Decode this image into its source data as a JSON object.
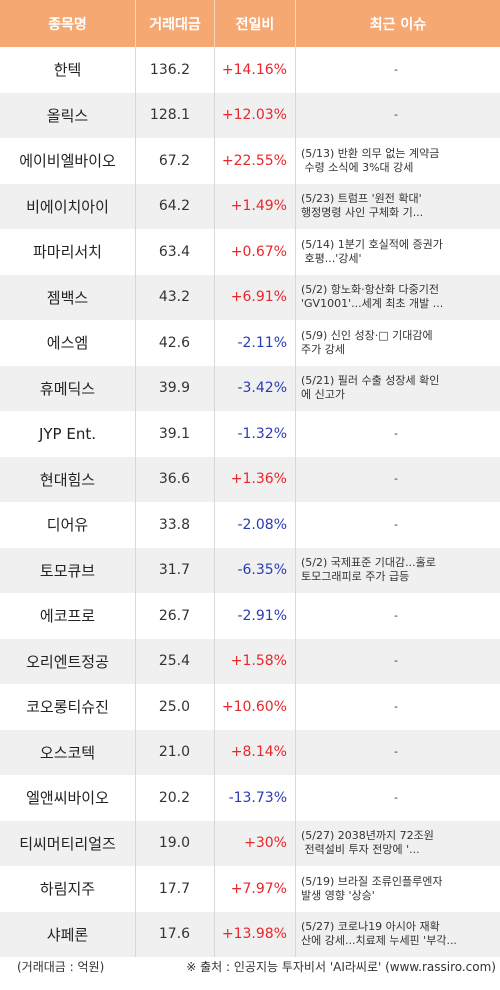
{
  "header": {
    "name": "종목명",
    "volume": "거래대금",
    "change": "전일비",
    "issue": "최근 이슈"
  },
  "rows": [
    {
      "name": "한텍",
      "volume": "136.2",
      "change": "+14.16%",
      "dir": "up",
      "issue": "-"
    },
    {
      "name": "올릭스",
      "volume": "128.1",
      "change": "+12.03%",
      "dir": "up",
      "issue": "-"
    },
    {
      "name": "에이비엘바이오",
      "volume": "67.2",
      "change": "+22.55%",
      "dir": "up",
      "issue": "(5/13) 반환 의무 없는 계약금\n 수령 소식에 3%대 강세"
    },
    {
      "name": "비에이치아이",
      "volume": "64.2",
      "change": "+1.49%",
      "dir": "up",
      "issue": "(5/23) 트럼프 '원전 확대'\n행정명령 사인 구체화 기..."
    },
    {
      "name": "파마리서치",
      "volume": "63.4",
      "change": "+0.67%",
      "dir": "up",
      "issue": "(5/14) 1분기 호실적에 증권가\n 호평...'강세'"
    },
    {
      "name": "젬백스",
      "volume": "43.2",
      "change": "+6.91%",
      "dir": "up",
      "issue": "(5/2) 항노화·항산화 다중기전\n'GV1001'...세계 최초 개발 ..."
    },
    {
      "name": "에스엠",
      "volume": "42.6",
      "change": "-2.11%",
      "dir": "down",
      "issue": "(5/9) 신인 성장·□ 기대감에\n주가 강세"
    },
    {
      "name": "휴메딕스",
      "volume": "39.9",
      "change": "-3.42%",
      "dir": "down",
      "issue": "(5/21) 필러 수출 성장세 확인\n에 신고가"
    },
    {
      "name": "JYP Ent.",
      "volume": "39.1",
      "change": "-1.32%",
      "dir": "down",
      "issue": "-"
    },
    {
      "name": "현대힘스",
      "volume": "36.6",
      "change": "+1.36%",
      "dir": "up",
      "issue": "-"
    },
    {
      "name": "디어유",
      "volume": "33.8",
      "change": "-2.08%",
      "dir": "down",
      "issue": "-"
    },
    {
      "name": "토모큐브",
      "volume": "31.7",
      "change": "-6.35%",
      "dir": "down",
      "issue": "(5/2) 국제표준 기대감...홀로\n토모그래피로 주가 급등"
    },
    {
      "name": "에코프로",
      "volume": "26.7",
      "change": "-2.91%",
      "dir": "down",
      "issue": "-"
    },
    {
      "name": "오리엔트정공",
      "volume": "25.4",
      "change": "+1.58%",
      "dir": "up",
      "issue": "-"
    },
    {
      "name": "코오롱티슈진",
      "volume": "25.0",
      "change": "+10.60%",
      "dir": "up",
      "issue": "-"
    },
    {
      "name": "오스코텍",
      "volume": "21.0",
      "change": "+8.14%",
      "dir": "up",
      "issue": "-"
    },
    {
      "name": "엘앤씨바이오",
      "volume": "20.2",
      "change": "-13.73%",
      "dir": "down",
      "issue": "-"
    },
    {
      "name": "티씨머티리얼즈",
      "volume": "19.0",
      "change": "+30%",
      "dir": "up",
      "issue": "(5/27) 2038년까지 72조원\n 전력설비 투자 전망에 '..."
    },
    {
      "name": "하림지주",
      "volume": "17.7",
      "change": "+7.97%",
      "dir": "up",
      "issue": "(5/19) 브라질 조류인플루엔자\n발생 영향 '상승'"
    },
    {
      "name": "샤페론",
      "volume": "17.6",
      "change": "+13.98%",
      "dir": "up",
      "issue": "(5/27) 코로나19 아시아 재확\n산에 강세...치료제 누세핀 '부각..."
    }
  ],
  "footer": {
    "unit": "(거래대금 : 억원)",
    "source": "※ 출처 : 인공지능 투자비서 'AI라씨로' (www.rassiro.com)"
  },
  "colors": {
    "header_bg": "#f6a872",
    "up": "#e8262b",
    "down": "#2a3cb5",
    "stripe": "#f0f0f0"
  }
}
